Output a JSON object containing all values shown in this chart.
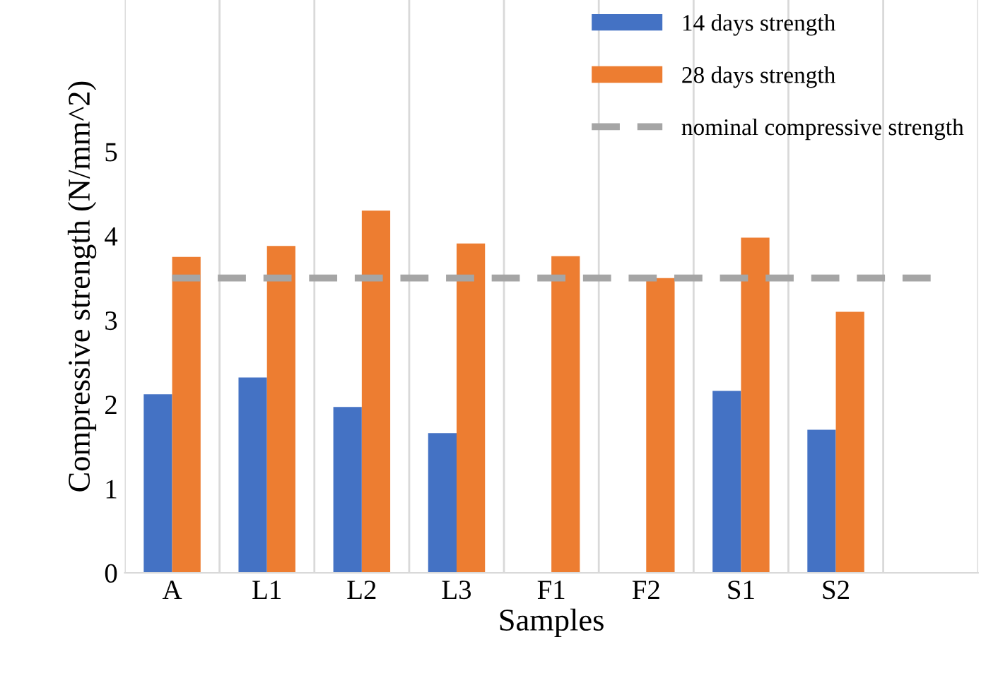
{
  "chart_data": {
    "type": "bar",
    "xlabel": "Samples",
    "ylabel": "Compressive strength (N/mm^2)",
    "categories": [
      "A",
      "L1",
      "L2",
      "L3",
      "F1",
      "F2",
      "S1",
      "S2",
      null
    ],
    "series": [
      {
        "name": "14 days strength",
        "color": "#4472c4",
        "values": [
          2.12,
          2.32,
          1.97,
          1.66,
          null,
          null,
          2.16,
          1.7,
          null
        ]
      },
      {
        "name": "28 days strength",
        "color": "#ed7d31",
        "values": [
          3.75,
          3.88,
          4.3,
          3.91,
          3.76,
          3.5,
          3.98,
          3.1,
          null
        ]
      },
      {
        "name": "nominal compressive strength",
        "type": "line",
        "color": "#a5a5a5",
        "line_style": "dashed",
        "values": [
          3.5,
          3.5,
          3.5,
          3.5,
          3.5,
          3.5,
          3.5,
          3.5,
          3.5
        ]
      }
    ],
    "ylim": [
      0,
      6.8
    ],
    "yticks": [
      0,
      1,
      2,
      3,
      4,
      5
    ],
    "grid": "x",
    "legend": "top right"
  }
}
